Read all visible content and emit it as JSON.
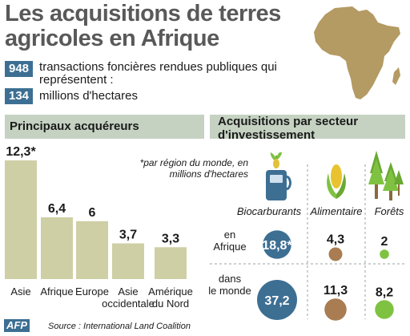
{
  "title": "Les acquisitions de terres agricoles en Afrique",
  "stats": [
    {
      "value": "948",
      "text": "transactions foncières rendues publiques qui représentent :"
    },
    {
      "value": "134",
      "text": "millions d'hectares"
    }
  ],
  "left_section": {
    "heading": "Principaux acquéreurs",
    "note": "*par région du monde, en millions d'hectares"
  },
  "right_section": {
    "heading": "Acquisitions par secteur d'investissement"
  },
  "colors": {
    "bar": "#cfcfa6",
    "badge": "#3d6f93",
    "band": "#c5d2c2",
    "title": "#595959",
    "circle_biocarburants": "#3d6f93",
    "circle_alimentaire": "#a97c52",
    "circle_forets": "#7fc241",
    "map": "#b49a63"
  },
  "chart_data": [
    {
      "type": "bar",
      "categories": [
        "Asie",
        "Afrique",
        "Europe",
        "Asie occidentale",
        "Amérique du Nord"
      ],
      "values": [
        12.3,
        6.4,
        6,
        3.7,
        3.3
      ],
      "value_labels": [
        "12,3*",
        "6,4",
        "6",
        "3,7",
        "3,3"
      ],
      "category_lines": [
        [
          "Asie"
        ],
        [
          "Afrique"
        ],
        [
          "Europe"
        ],
        [
          "Asie",
          "occidentale"
        ],
        [
          "Amérique",
          "du Nord"
        ]
      ],
      "ylim": [
        0,
        12.3
      ]
    },
    {
      "type": "bubble",
      "columns": [
        "Biocarburants",
        "Alimentaire",
        "Forêts"
      ],
      "rows": [
        {
          "label_lines": [
            "en",
            "Afrique"
          ],
          "values": [
            18.8,
            4.3,
            2
          ],
          "value_labels": [
            "18,8*",
            "4,3",
            "2"
          ]
        },
        {
          "label_lines": [
            "dans",
            "le monde"
          ],
          "values": [
            37.2,
            11.3,
            8.2
          ],
          "value_labels": [
            "37,2",
            "11,3",
            "8,2"
          ]
        }
      ]
    }
  ],
  "source": "Source : International Land Coalition",
  "agency": "AFP"
}
